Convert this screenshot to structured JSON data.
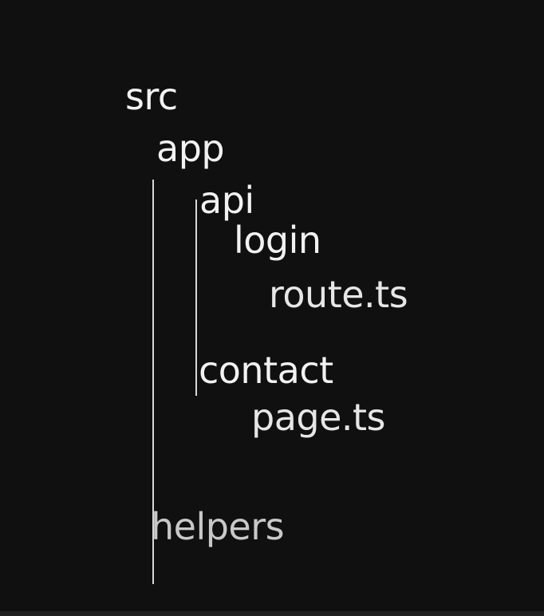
{
  "tree": {
    "root": "src",
    "app": "app",
    "api": "api",
    "login": "login",
    "route": "route.ts",
    "contact": "contact",
    "page": "page.ts",
    "helpers": "helpers"
  },
  "colors": {
    "background": "#101010",
    "text": "#f2f2f2",
    "guide_line": "#d8d8d8"
  }
}
